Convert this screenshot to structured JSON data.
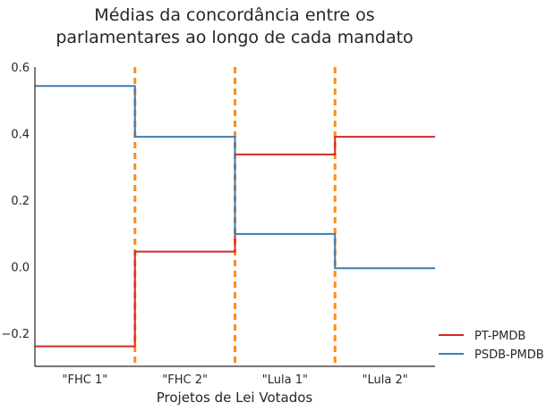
{
  "chart_data": {
    "type": "line",
    "step": true,
    "title_lines": [
      "Médias da concordância entre os",
      "parlamentares ao longo de cada mandato"
    ],
    "xlabel": "Projetos de Lei Votados",
    "ylabel": "",
    "categories": [
      "\"FHC 1\"",
      "\"FHC 2\"",
      "\"Lula 1\"",
      "\"Lula 2\""
    ],
    "ylim": [
      -0.3,
      0.6
    ],
    "yticks": [
      0.6,
      0.4,
      0.2,
      0.0,
      -0.2
    ],
    "ytick_labels": [
      "0.6",
      "0.4",
      "0.2",
      "0.0",
      "−0.2"
    ],
    "series": [
      {
        "name": "PT-PMDB",
        "color": "#d62728",
        "values": [
          -0.24,
          0.045,
          0.337,
          0.39
        ]
      },
      {
        "name": "PSDB-PMDB",
        "color": "#3a7db6",
        "values": [
          0.543,
          0.39,
          0.098,
          -0.005
        ]
      }
    ],
    "divider_color": "#ff8c1a",
    "grid": false,
    "legend_position": "bottom-right"
  }
}
